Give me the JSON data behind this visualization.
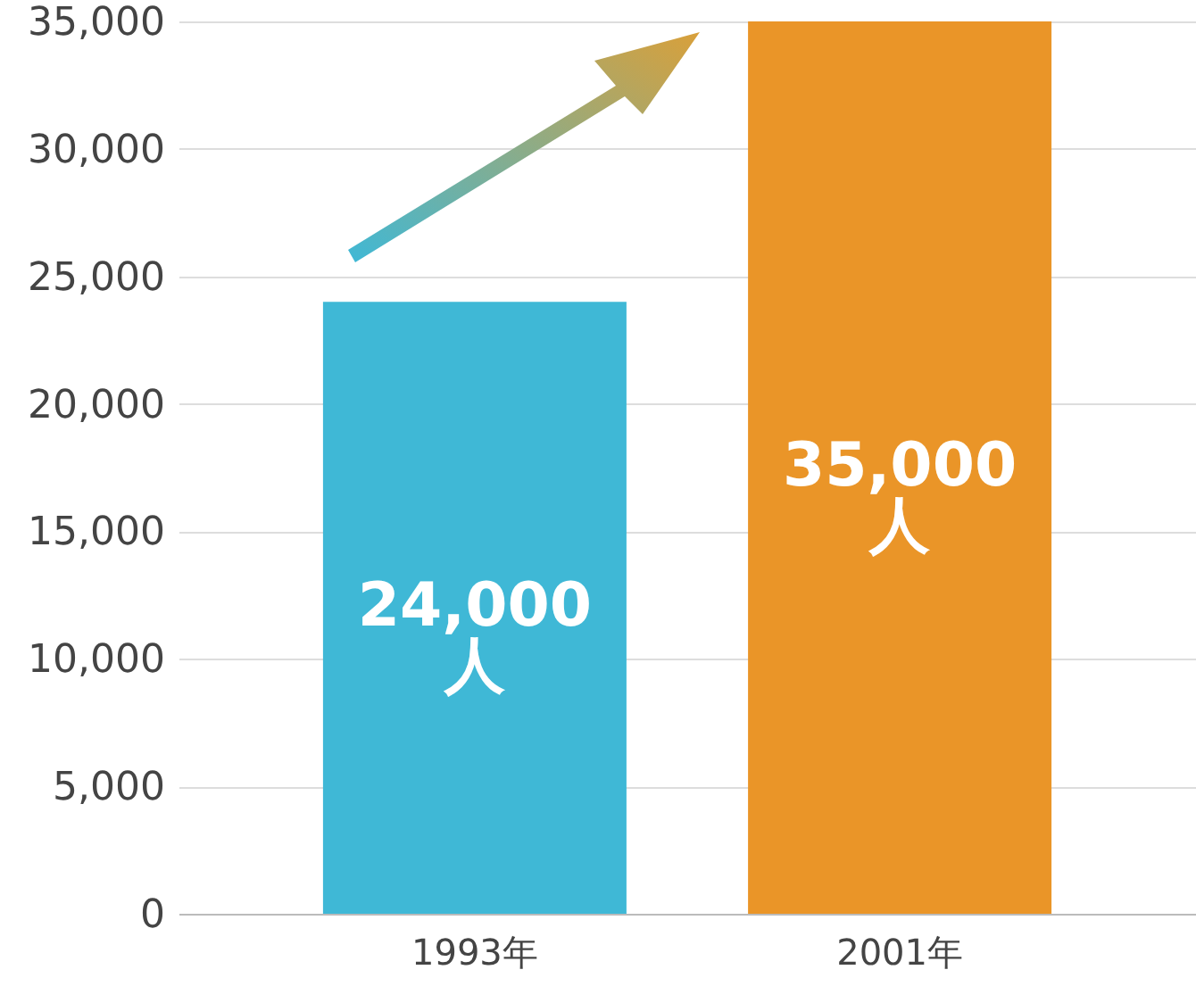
{
  "chart_data": {
    "type": "bar",
    "categories": [
      "1993年",
      "2001年"
    ],
    "values": [
      24000,
      35000
    ],
    "colors": [
      "#3fb8d6",
      "#ea9528"
    ],
    "value_labels": [
      "24,000\n人",
      "35,000\n人"
    ],
    "ylim": [
      0,
      35000
    ],
    "yticks": [
      {
        "value": 0,
        "label": "0"
      },
      {
        "value": 5000,
        "label": "5,000"
      },
      {
        "value": 10000,
        "label": "10,000"
      },
      {
        "value": 15000,
        "label": "15,000"
      },
      {
        "value": 20000,
        "label": "20,000"
      },
      {
        "value": 25000,
        "label": "25,000"
      },
      {
        "value": 30000,
        "label": "30,000"
      },
      {
        "value": 35000,
        "label": "35,000"
      }
    ],
    "grid": "y"
  }
}
